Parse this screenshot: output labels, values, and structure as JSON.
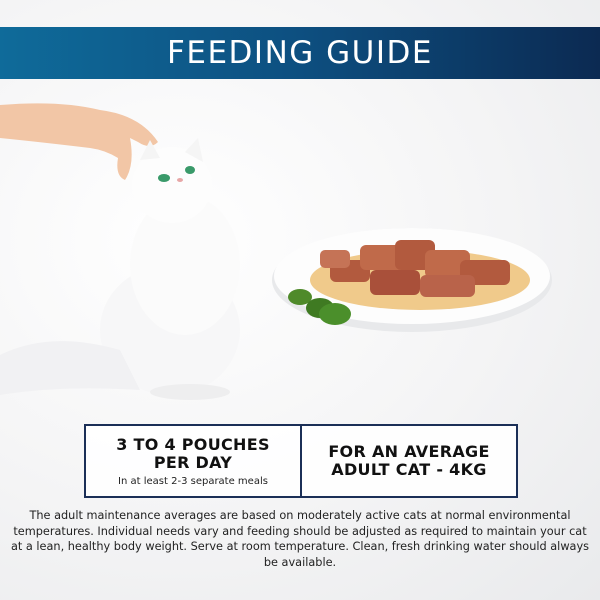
{
  "banner": {
    "title": "FEEDING GUIDE",
    "colors": {
      "start": "#0f6b9a",
      "end": "#0c2a52"
    }
  },
  "illustration": {
    "subject": "white-cat-being-petted",
    "food": "plate-of-meat-chunks-in-gravy"
  },
  "guide": {
    "portion": {
      "main": "3 TO 4 POUCHES PER DAY",
      "sub": "In at least 2-3 separate meals"
    },
    "target": {
      "main": "FOR AN AVERAGE ADULT CAT - 4KG"
    }
  },
  "note": "The adult maintenance averages are based on moderately active cats at normal environmental temperatures. Individual needs vary and feeding should be adjusted as required to maintain your cat at a lean, healthy body weight. Serve at room temperature. Clean, fresh drinking water should always be available."
}
